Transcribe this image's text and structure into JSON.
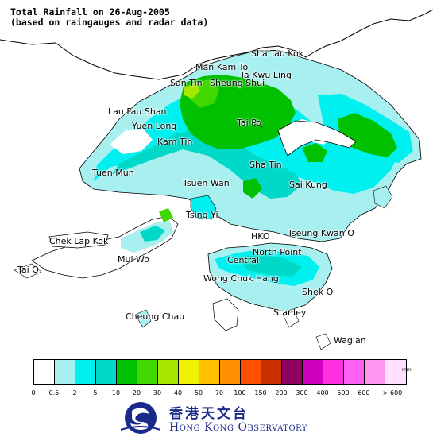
{
  "header": {
    "title": "Total Rainfall on 26-Aug-2005",
    "subtitle": "(based on raingauges and radar data)"
  },
  "places": [
    {
      "name": "Sha Tau Kok"
    },
    {
      "name": "Man Kam To"
    },
    {
      "name": "Ta Kwu Ling"
    },
    {
      "name": "San Tin"
    },
    {
      "name": "Sheung Shui"
    },
    {
      "name": "Lau Fau Shan"
    },
    {
      "name": "Yuen Long"
    },
    {
      "name": "Tai Po"
    },
    {
      "name": "Kam Tin"
    },
    {
      "name": "Sha Tin"
    },
    {
      "name": "Tuen Mun"
    },
    {
      "name": "Tsuen Wan"
    },
    {
      "name": "Sai Kung"
    },
    {
      "name": "Tsing Yi"
    },
    {
      "name": "Chek Lap Kok"
    },
    {
      "name": "HKO"
    },
    {
      "name": "Tseung Kwan O"
    },
    {
      "name": "Mui Wo"
    },
    {
      "name": "North Point"
    },
    {
      "name": "Tai O"
    },
    {
      "name": "Central"
    },
    {
      "name": "Wong Chuk Hang"
    },
    {
      "name": "Shek O"
    },
    {
      "name": "Cheung Chau"
    },
    {
      "name": "Stanley"
    },
    {
      "name": "Waglan"
    }
  ],
  "legend": {
    "unit": "mm",
    "colors": [
      "#ffffff",
      "#a8f0f0",
      "#00f0f0",
      "#00d8c8",
      "#00c000",
      "#40d800",
      "#a8e800",
      "#f0f000",
      "#ffc000",
      "#ff9000",
      "#ff5000",
      "#c83000",
      "#900060",
      "#d000c0",
      "#ff30e0",
      "#ff60f0",
      "#ff98f0",
      "#ffe0ff"
    ],
    "ticks": [
      "0",
      "0.5",
      "2",
      "5",
      "10",
      "20",
      "30",
      "40",
      "50",
      "70",
      "100",
      "150",
      "200",
      "300",
      "400",
      "500",
      "600",
      "> 600"
    ]
  },
  "organization": {
    "name_zh": "香港天文台",
    "name_en": "Hong Kong Observatory"
  }
}
